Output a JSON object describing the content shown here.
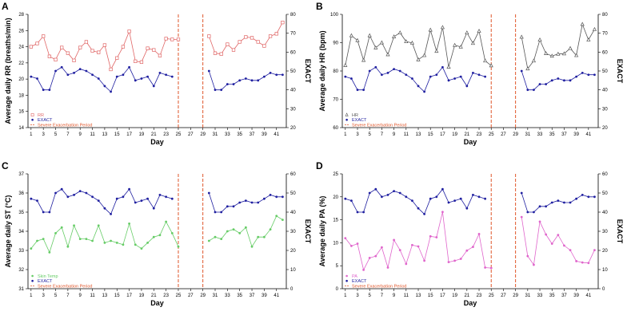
{
  "figure_title": "",
  "legend": {
    "series1_label": "EXACT",
    "period_label": "Severe Exacerbation Period"
  },
  "colors": {
    "exact": "#1f1fa0",
    "period": "#e0562a",
    "axis": "#000000"
  },
  "chart_data": [
    {
      "panel": "A",
      "type": "line",
      "xlabel": "Day",
      "ylabel_left": "Average daily RR (breaths/min)",
      "ylabel_right": "EXACT",
      "xlim": [
        1,
        42
      ],
      "xticks": [
        1,
        3,
        5,
        7,
        9,
        11,
        13,
        15,
        17,
        19,
        21,
        23,
        25,
        27,
        29,
        31,
        33,
        35,
        37,
        39,
        41
      ],
      "ylim_left": [
        14,
        28
      ],
      "yticks_left": [
        14,
        16,
        18,
        20,
        22,
        24,
        26,
        28
      ],
      "ylim_right": [
        20,
        80
      ],
      "yticks_right": [
        20,
        30,
        40,
        50,
        60,
        70,
        80
      ],
      "exacerbation_days": [
        25,
        29
      ],
      "series": [
        {
          "name": "RR",
          "axis": "left",
          "color": "#e06666",
          "marker": "square",
          "x": [
            1,
            2,
            3,
            4,
            5,
            6,
            7,
            8,
            9,
            10,
            11,
            12,
            13,
            14,
            15,
            16,
            17,
            18,
            19,
            20,
            21,
            22,
            23,
            24,
            25,
            30,
            31,
            32,
            33,
            34,
            35,
            36,
            37,
            38,
            39,
            40,
            41,
            42
          ],
          "y": [
            24.0,
            24.4,
            25.3,
            22.8,
            22.4,
            23.9,
            23.2,
            22.3,
            23.9,
            24.6,
            23.5,
            23.3,
            24.2,
            21.2,
            22.6,
            24.0,
            25.9,
            22.2,
            22.1,
            23.8,
            23.6,
            22.9,
            25.0,
            24.9,
            24.9,
            25.3,
            23.2,
            23.1,
            24.3,
            23.6,
            24.6,
            25.2,
            25.1,
            24.6,
            24.1,
            25.3,
            25.6,
            27.0
          ]
        },
        {
          "name": "EXACT",
          "axis": "right",
          "color": "#1f1fa0",
          "marker": "dot",
          "x": [
            1,
            2,
            3,
            4,
            5,
            6,
            7,
            8,
            9,
            10,
            11,
            12,
            13,
            14,
            15,
            16,
            17,
            18,
            19,
            20,
            21,
            22,
            23,
            24,
            30,
            31,
            32,
            33,
            34,
            35,
            36,
            37,
            38,
            39,
            40,
            41,
            42
          ],
          "y": [
            47,
            46,
            40,
            40,
            50,
            52,
            48,
            49,
            51,
            50,
            48,
            46,
            42,
            39,
            47,
            48,
            52,
            45,
            46,
            47,
            42,
            49,
            48,
            47,
            50,
            40,
            40,
            43,
            43,
            45,
            46,
            45,
            45,
            47,
            49,
            48,
            48
          ]
        }
      ],
      "legend_entries": [
        "RR",
        "EXACT",
        "Severe Exacerbation Period"
      ]
    },
    {
      "panel": "B",
      "type": "line",
      "xlabel": "Day",
      "ylabel_left": "Average daily HR (bpm)",
      "ylabel_right": "EXACT",
      "xlim": [
        1,
        42
      ],
      "xticks": [
        1,
        3,
        5,
        7,
        9,
        11,
        13,
        15,
        17,
        19,
        21,
        23,
        25,
        27,
        29,
        31,
        33,
        35,
        37,
        39,
        41
      ],
      "ylim_left": [
        60,
        100
      ],
      "yticks_left": [
        60,
        70,
        80,
        90,
        100
      ],
      "ylim_right": [
        20,
        80
      ],
      "yticks_right": [
        20,
        30,
        40,
        50,
        60,
        70,
        80
      ],
      "exacerbation_days": [
        25,
        29
      ],
      "series": [
        {
          "name": "HR",
          "axis": "left",
          "color": "#555555",
          "marker": "triangle",
          "x": [
            1,
            2,
            3,
            4,
            5,
            6,
            7,
            8,
            9,
            10,
            11,
            12,
            13,
            14,
            15,
            16,
            17,
            18,
            19,
            20,
            21,
            22,
            23,
            24,
            25,
            30,
            31,
            32,
            33,
            34,
            35,
            36,
            37,
            38,
            39,
            40,
            41,
            42
          ],
          "y": [
            82.0,
            92.5,
            90.8,
            83.8,
            92.5,
            88.2,
            90.0,
            85.8,
            92.1,
            93.5,
            90.4,
            89.9,
            84.0,
            85.5,
            94.5,
            87.0,
            95.4,
            81.4,
            89.1,
            88.5,
            93.5,
            89.8,
            94.1,
            83.6,
            81.9,
            92.0,
            80.8,
            83.6,
            91.0,
            86.2,
            85.3,
            86.0,
            86.1,
            88.0,
            85.5,
            96.5,
            91.0,
            94.7
          ]
        },
        {
          "name": "EXACT",
          "axis": "right",
          "color": "#1f1fa0",
          "marker": "dot",
          "x": [
            1,
            2,
            3,
            4,
            5,
            6,
            7,
            8,
            9,
            10,
            11,
            12,
            13,
            14,
            15,
            16,
            17,
            18,
            19,
            20,
            21,
            22,
            23,
            24,
            30,
            31,
            32,
            33,
            34,
            35,
            36,
            37,
            38,
            39,
            40,
            41,
            42
          ],
          "y": [
            47,
            46,
            40,
            40,
            50,
            52,
            48,
            49,
            51,
            50,
            48,
            46,
            42,
            39,
            47,
            48,
            52,
            45,
            46,
            47,
            42,
            49,
            48,
            47,
            50,
            40,
            40,
            43,
            43,
            45,
            46,
            45,
            45,
            47,
            49,
            48,
            48
          ]
        }
      ],
      "legend_entries": [
        "HR",
        "EXACT",
        "Severe Exacerbation Period"
      ]
    },
    {
      "panel": "C",
      "type": "line",
      "xlabel": "Day",
      "ylabel_left": "Average daily ST (°C)",
      "ylabel_right": "EXACT",
      "xlim": [
        1,
        42
      ],
      "xticks": [
        1,
        3,
        5,
        7,
        9,
        11,
        13,
        15,
        17,
        19,
        21,
        23,
        25,
        27,
        29,
        31,
        33,
        35,
        37,
        39,
        41
      ],
      "ylim_left": [
        31,
        37
      ],
      "yticks_left": [
        31,
        32,
        33,
        34,
        35,
        36,
        37
      ],
      "ylim_right": [
        0,
        60
      ],
      "yticks_right": [
        0,
        10,
        20,
        30,
        40,
        50,
        60
      ],
      "exacerbation_days": [
        25,
        29
      ],
      "series": [
        {
          "name": "Skin Temp",
          "axis": "left",
          "color": "#66cc66",
          "marker": "dot",
          "x": [
            1,
            2,
            3,
            4,
            5,
            6,
            7,
            8,
            9,
            10,
            11,
            12,
            13,
            14,
            15,
            16,
            17,
            18,
            19,
            20,
            21,
            22,
            23,
            24,
            25,
            30,
            31,
            32,
            33,
            34,
            35,
            36,
            37,
            38,
            39,
            40,
            41,
            42
          ],
          "y": [
            33.1,
            33.5,
            33.6,
            32.9,
            33.9,
            34.2,
            33.2,
            34.3,
            33.6,
            33.6,
            33.5,
            34.3,
            33.4,
            33.5,
            33.4,
            33.3,
            34.4,
            33.3,
            33.1,
            33.4,
            33.7,
            33.8,
            34.5,
            33.9,
            33.2,
            33.5,
            33.7,
            33.6,
            34.0,
            34.1,
            33.9,
            34.2,
            33.2,
            33.7,
            33.7,
            34.1,
            34.8,
            34.6
          ]
        },
        {
          "name": "EXACT",
          "axis": "right",
          "color": "#1f1fa0",
          "marker": "dot",
          "x": [
            1,
            2,
            3,
            4,
            5,
            6,
            7,
            8,
            9,
            10,
            11,
            12,
            13,
            14,
            15,
            16,
            17,
            18,
            19,
            20,
            21,
            22,
            23,
            24,
            30,
            31,
            32,
            33,
            34,
            35,
            36,
            37,
            38,
            39,
            40,
            41,
            42
          ],
          "y": [
            47,
            46,
            40,
            40,
            50,
            52,
            48,
            49,
            51,
            50,
            48,
            46,
            42,
            39,
            47,
            48,
            52,
            45,
            46,
            47,
            42,
            49,
            48,
            47,
            50,
            40,
            40,
            43,
            43,
            45,
            46,
            45,
            45,
            47,
            49,
            48,
            48
          ]
        }
      ],
      "legend_entries": [
        "Skin Temp",
        "EXACT",
        "Severe Exacerbation Period"
      ]
    },
    {
      "panel": "D",
      "type": "line",
      "xlabel": "Day",
      "ylabel_left": "Average daily PA (%)",
      "ylabel_right": "EXACT",
      "xlim": [
        1,
        42
      ],
      "xticks": [
        1,
        3,
        5,
        7,
        9,
        11,
        13,
        15,
        17,
        19,
        21,
        23,
        25,
        27,
        29,
        31,
        33,
        35,
        37,
        39,
        41
      ],
      "ylim_left": [
        0,
        25
      ],
      "yticks_left": [
        0,
        5,
        10,
        15,
        20,
        25
      ],
      "ylim_right": [
        0,
        60
      ],
      "yticks_right": [
        0,
        10,
        20,
        30,
        40,
        50,
        60
      ],
      "exacerbation_days": [
        25,
        29
      ],
      "series": [
        {
          "name": "PA",
          "axis": "left",
          "color": "#e066cc",
          "marker": "dot",
          "x": [
            1,
            2,
            3,
            4,
            5,
            6,
            7,
            8,
            9,
            10,
            11,
            12,
            13,
            14,
            15,
            16,
            17,
            18,
            19,
            20,
            21,
            22,
            23,
            24,
            25,
            30,
            31,
            32,
            33,
            34,
            35,
            36,
            37,
            38,
            39,
            40,
            41,
            42
          ],
          "y": [
            11.0,
            9.3,
            9.8,
            4.1,
            6.7,
            7.1,
            9.0,
            4.6,
            10.6,
            8.4,
            5.4,
            9.5,
            9.2,
            6.1,
            11.4,
            11.2,
            16.7,
            5.8,
            6.1,
            6.5,
            8.3,
            9.1,
            11.9,
            4.6,
            4.5,
            15.6,
            7.1,
            5.2,
            14.6,
            11.8,
            9.8,
            11.7,
            9.4,
            8.4,
            6.0,
            5.7,
            5.6,
            8.4
          ]
        },
        {
          "name": "EXACT",
          "axis": "right",
          "color": "#1f1fa0",
          "marker": "dot",
          "x": [
            1,
            2,
            3,
            4,
            5,
            6,
            7,
            8,
            9,
            10,
            11,
            12,
            13,
            14,
            15,
            16,
            17,
            18,
            19,
            20,
            21,
            22,
            23,
            24,
            30,
            31,
            32,
            33,
            34,
            35,
            36,
            37,
            38,
            39,
            40,
            41,
            42
          ],
          "y": [
            47,
            46,
            40,
            40,
            50,
            52,
            48,
            49,
            51,
            50,
            48,
            46,
            42,
            39,
            47,
            48,
            52,
            45,
            46,
            47,
            42,
            49,
            48,
            47,
            50,
            40,
            40,
            43,
            43,
            45,
            46,
            45,
            45,
            47,
            49,
            48,
            48
          ]
        }
      ],
      "legend_entries": [
        "PA",
        "EXACT",
        "Severe Exacerbation Period"
      ]
    }
  ]
}
